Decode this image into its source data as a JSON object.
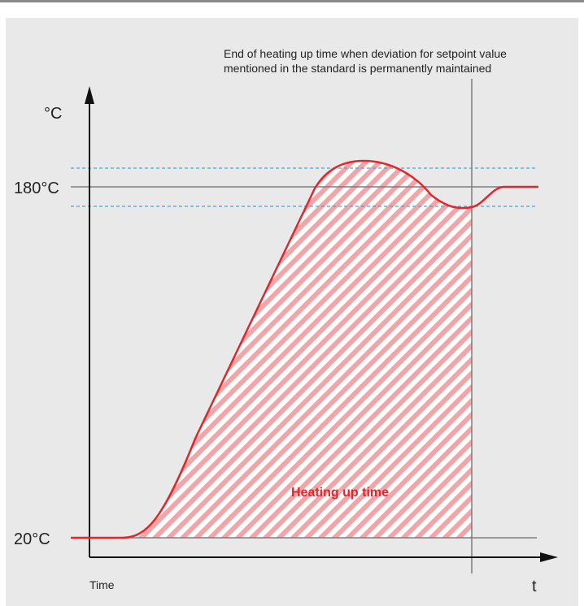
{
  "diagram": {
    "annotation_lines": [
      "End of heating up time when deviation for setpoint value",
      "mentioned in the standard is permanently maintained"
    ],
    "y_unit": "°C",
    "x_unit": "t",
    "x_caption": "Time",
    "setpoint_label": "180°C",
    "start_label": "20°C",
    "region_label": "Heating up time",
    "colors": {
      "curve": "#e4252c",
      "hatch": "#f2a5a7",
      "tolerance": "#3ea9dc",
      "axis": "#111111",
      "grid": "#7d7d7d",
      "panel": "#e9e9ea"
    }
  }
}
